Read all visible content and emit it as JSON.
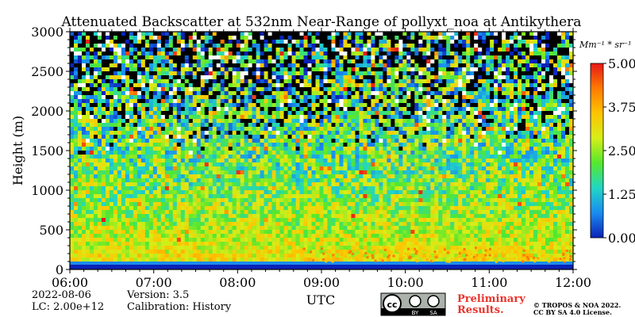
{
  "chart_data": {
    "type": "heatmap",
    "title": "Attenuated Backscatter at 532nm Near-Range of pollyxt_noa at Antikythera",
    "xlabel": "UTC",
    "ylabel": "Height (m)",
    "x_ticks": [
      "06:00",
      "07:00",
      "08:00",
      "09:00",
      "10:00",
      "11:00",
      "12:00"
    ],
    "xlim": [
      "06:00",
      "12:00"
    ],
    "y_ticks": [
      0,
      500,
      1000,
      1500,
      2000,
      2500,
      3000
    ],
    "ylim": [
      0,
      3000
    ],
    "colorbar": {
      "unit": "Mm⁻¹ * sr⁻¹",
      "ticks": [
        "0.00",
        "1.25",
        "2.50",
        "3.75",
        "5.00"
      ],
      "range": [
        0.0,
        5.0
      ],
      "colors": [
        "#0b22b8",
        "#1a8cf0",
        "#22d6c4",
        "#55e82c",
        "#d6ee18",
        "#ffc400",
        "#ff7a00",
        "#e81818"
      ]
    },
    "profile_description": "noisy low-to-moderate values; strong near-surface layer",
    "value_profile": [
      {
        "height": 0,
        "value": 0.6
      },
      {
        "height": 100,
        "value": 3.2
      },
      {
        "height": 300,
        "value": 2.9
      },
      {
        "height": 600,
        "value": 2.6
      },
      {
        "height": 1000,
        "value": 2.3
      },
      {
        "height": 1500,
        "value": 2.0
      },
      {
        "height": 2000,
        "value": 1.8
      },
      {
        "height": 2500,
        "value": 1.6
      },
      {
        "height": 3000,
        "value": 1.5
      }
    ]
  },
  "footer": {
    "date": "2022-08-06",
    "lc": "LC: 2.00e+12",
    "version": "Version: 3.5",
    "calibration": "Calibration: History",
    "prelim_line1": "Preliminary",
    "prelim_line2": "Results.",
    "copyright_line1": "© TROPOS & NOA 2022.",
    "copyright_line2": "CC BY SA 4.0 License.",
    "license_badge": [
      "cc",
      "BY",
      "SA"
    ]
  }
}
